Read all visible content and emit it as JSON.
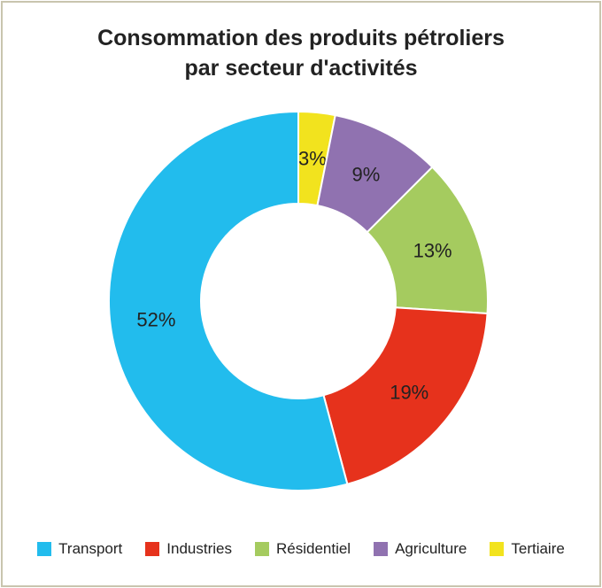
{
  "chart_data": {
    "type": "pie",
    "title_line1": "Consommation des produits pétroliers",
    "title_line2": "par secteur d'activités",
    "legend_position": "bottom",
    "slices": [
      {
        "name": "Tertiaire",
        "value": 3,
        "label": "3%",
        "color": "#f2e31e"
      },
      {
        "name": "Agriculture",
        "value": 9,
        "label": "9%",
        "color": "#9072b0"
      },
      {
        "name": "Résidentiel",
        "value": 13,
        "label": "13%",
        "color": "#a5cb5f"
      },
      {
        "name": "Industries",
        "value": 19,
        "label": "19%",
        "color": "#e6321c"
      },
      {
        "name": "Transport",
        "value": 52,
        "label": "52%",
        "color": "#22bced"
      }
    ],
    "legend": [
      {
        "name": "Transport",
        "color": "#22bced"
      },
      {
        "name": "Industries",
        "color": "#e6321c"
      },
      {
        "name": "Résidentiel",
        "color": "#a5cb5f"
      },
      {
        "name": "Agriculture",
        "color": "#9072b0"
      },
      {
        "name": "Tertiaire",
        "color": "#f2e31e"
      }
    ]
  }
}
